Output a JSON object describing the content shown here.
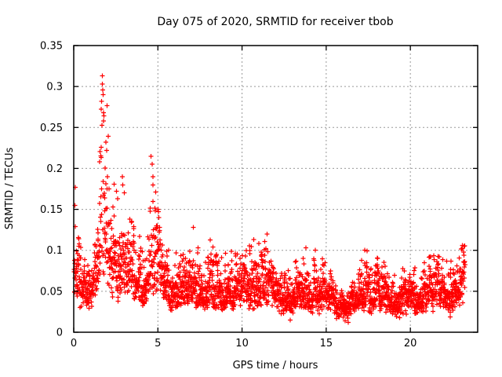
{
  "window": {
    "title": "Day 075 of 2020, SRMTID for receiver tbob"
  },
  "chart_data": {
    "type": "scatter",
    "title": "Day 075 of 2020, SRMTID for receiver tbob",
    "xlabel": "GPS time / hours",
    "ylabel": "SRMTID / TECUs",
    "xlim": [
      0,
      24
    ],
    "ylim": [
      0,
      0.35
    ],
    "xticks": [
      0,
      5,
      10,
      15,
      20
    ],
    "xtick_labels": [
      "0",
      "5",
      "10",
      "15",
      "20"
    ],
    "yticks": [
      0,
      0.05,
      0.1,
      0.15,
      0.2,
      0.25,
      0.3,
      0.35
    ],
    "ytick_labels": [
      "0",
      "0.05",
      "0.1",
      "0.15",
      "0.2",
      "0.25",
      "0.3",
      "0.35"
    ],
    "grid": true,
    "legend_position": "none",
    "marker": "plus",
    "marker_color": "#ff0000",
    "grid_color": "#999999",
    "axis_color": "#000000",
    "background": "#ffffff",
    "series": [
      {
        "name": "SRMTID",
        "x_start": 0.02,
        "x_end": 23.25,
        "n_points": 2800,
        "seed": 75,
        "baseline_envelope": [
          [
            0.0,
            0.06,
            0.175
          ],
          [
            0.35,
            0.052,
            0.105
          ],
          [
            0.9,
            0.058,
            0.11
          ],
          [
            1.35,
            0.068,
            0.16
          ],
          [
            1.6,
            0.09,
            0.28
          ],
          [
            1.85,
            0.098,
            0.315
          ],
          [
            2.1,
            0.088,
            0.235
          ],
          [
            2.5,
            0.082,
            0.175
          ],
          [
            3.0,
            0.074,
            0.15
          ],
          [
            3.5,
            0.062,
            0.132
          ],
          [
            4.1,
            0.057,
            0.11
          ],
          [
            4.65,
            0.078,
            0.215
          ],
          [
            5.0,
            0.066,
            0.15
          ],
          [
            5.6,
            0.054,
            0.112
          ],
          [
            6.3,
            0.048,
            0.095
          ],
          [
            7.1,
            0.053,
            0.128
          ],
          [
            7.9,
            0.05,
            0.118
          ],
          [
            8.8,
            0.047,
            0.095
          ],
          [
            9.6,
            0.05,
            0.1
          ],
          [
            10.6,
            0.053,
            0.113
          ],
          [
            11.5,
            0.054,
            0.122
          ],
          [
            12.2,
            0.047,
            0.088
          ],
          [
            12.9,
            0.041,
            0.078
          ],
          [
            13.8,
            0.049,
            0.103
          ],
          [
            14.4,
            0.048,
            0.1
          ],
          [
            15.2,
            0.042,
            0.078
          ],
          [
            16.2,
            0.03,
            0.058
          ],
          [
            16.8,
            0.037,
            0.078
          ],
          [
            17.4,
            0.047,
            0.1
          ],
          [
            18.2,
            0.043,
            0.088
          ],
          [
            19.2,
            0.039,
            0.076
          ],
          [
            20.0,
            0.04,
            0.08
          ],
          [
            20.8,
            0.045,
            0.09
          ],
          [
            21.5,
            0.047,
            0.094
          ],
          [
            22.2,
            0.044,
            0.088
          ],
          [
            22.8,
            0.051,
            0.098
          ],
          [
            23.25,
            0.063,
            0.106
          ]
        ],
        "wave_modulation": [
          {
            "period": 1.65,
            "amp": 0.13,
            "phase": 1.2
          },
          {
            "period": 0.52,
            "amp": 0.09,
            "phase": 4.0
          }
        ],
        "burst_events": [
          [
            0.04,
            0.18,
            0.65
          ],
          [
            1.5,
            2.15,
            1.0
          ],
          [
            2.4,
            3.1,
            0.55
          ],
          [
            3.3,
            3.6,
            0.5
          ],
          [
            4.5,
            5.1,
            0.8
          ],
          [
            7.0,
            7.3,
            0.5
          ],
          [
            10.5,
            10.9,
            0.45
          ],
          [
            11.3,
            11.7,
            0.5
          ],
          [
            17.2,
            17.5,
            0.45
          ],
          [
            22.9,
            23.25,
            0.5
          ]
        ],
        "notable_points": [
          [
            0.08,
            0.155
          ],
          [
            0.1,
            0.177
          ],
          [
            1.7,
            0.313
          ],
          [
            1.7,
            0.303
          ],
          [
            1.72,
            0.296
          ],
          [
            1.74,
            0.29
          ],
          [
            1.76,
            0.268
          ],
          [
            1.78,
            0.258
          ],
          [
            1.9,
            0.232
          ],
          [
            1.95,
            0.222
          ],
          [
            2.0,
            0.19
          ],
          [
            2.1,
            0.175
          ],
          [
            2.55,
            0.172
          ],
          [
            2.6,
            0.163
          ],
          [
            2.9,
            0.19
          ],
          [
            2.92,
            0.18
          ],
          [
            3.0,
            0.17
          ],
          [
            3.45,
            0.135
          ],
          [
            4.6,
            0.215
          ],
          [
            4.65,
            0.205
          ],
          [
            4.7,
            0.19
          ],
          [
            4.72,
            0.18
          ],
          [
            5.0,
            0.15
          ],
          [
            5.05,
            0.14
          ],
          [
            7.1,
            0.128
          ],
          [
            10.7,
            0.113
          ],
          [
            11.5,
            0.12
          ],
          [
            12.85,
            0.015
          ],
          [
            13.8,
            0.103
          ],
          [
            14.35,
            0.1
          ],
          [
            16.3,
            0.012
          ],
          [
            17.3,
            0.1
          ],
          [
            23.1,
            0.106
          ],
          [
            23.15,
            0.098
          ]
        ]
      }
    ]
  }
}
